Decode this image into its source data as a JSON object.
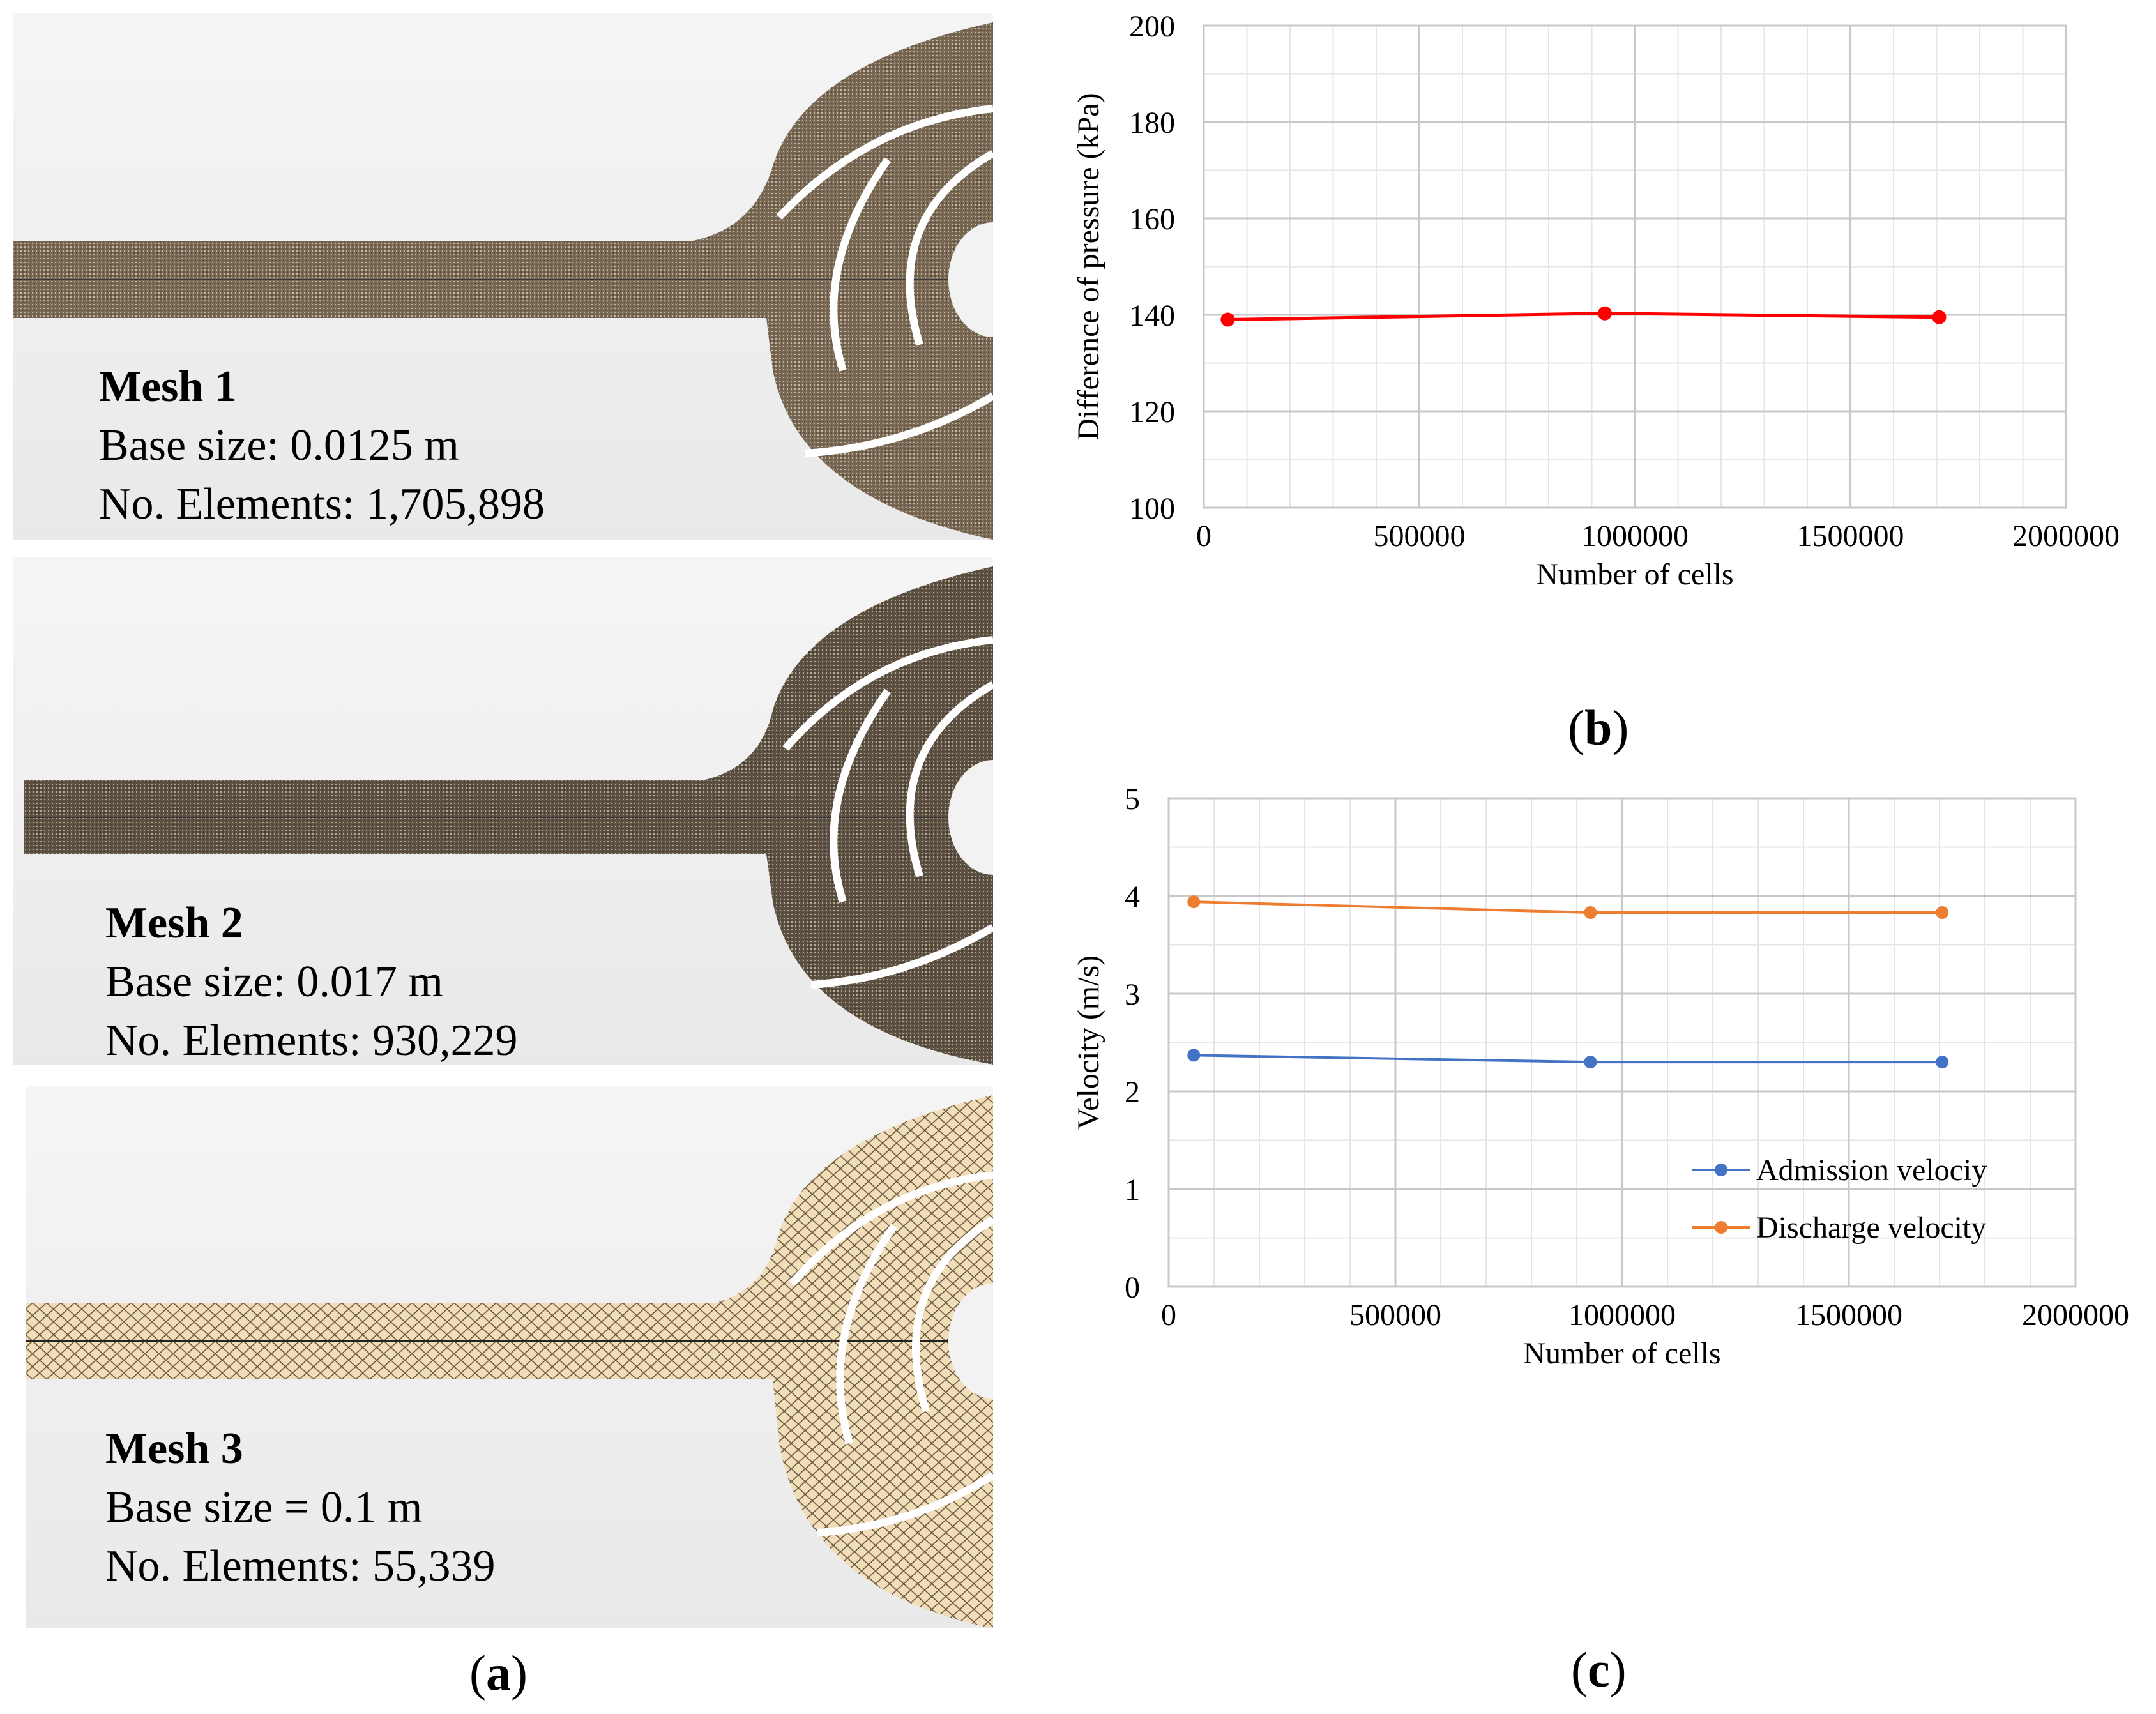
{
  "panel_labels": {
    "a": {
      "open": "(",
      "letter": "a",
      "close": ")"
    },
    "b": {
      "open": "(",
      "letter": "b",
      "close": ")"
    },
    "c": {
      "open": "(",
      "letter": "c",
      "close": ")"
    }
  },
  "meshes": [
    {
      "name": "Mesh 1",
      "base_size": "Base size: 0.0125 m",
      "elements": "No. Elements: 1,705,898",
      "fill": "#7a6a55"
    },
    {
      "name": "Mesh 2",
      "base_size": "Base size: 0.017 m",
      "elements": "No. Elements: 930,229",
      "fill": "#5e5244"
    },
    {
      "name": "Mesh 3",
      "base_size": "Base size = 0.1 m",
      "elements": "No. Elements: 55,339",
      "fill": "#f1ddb8"
    }
  ],
  "chart_data": [
    {
      "type": "line",
      "xlabel": "Number of cells",
      "ylabel": "Difference of pressure (kPa)",
      "xlim": [
        0,
        2000000
      ],
      "ylim": [
        100,
        200
      ],
      "xticks": [
        "0",
        "500000",
        "1000000",
        "1500000",
        "2000000"
      ],
      "yticks": [
        "100",
        "120",
        "140",
        "160",
        "180",
        "200"
      ],
      "grid": true,
      "series": [
        {
          "x": [
            55339,
            930229,
            1705898
          ],
          "y": [
            139,
            140.3,
            139.5
          ],
          "color": "#ff0000"
        }
      ]
    },
    {
      "type": "line",
      "xlabel": "Number  of cells",
      "ylabel": "Velocity (m/s)",
      "xlim": [
        0,
        2000000
      ],
      "ylim": [
        0,
        5
      ],
      "xticks": [
        "0",
        "500000",
        "1000000",
        "1500000",
        "2000000"
      ],
      "yticks": [
        "0",
        "1",
        "2",
        "3",
        "4",
        "5"
      ],
      "grid": true,
      "legend": "bottom-right",
      "series": [
        {
          "name": "Admission velociy",
          "x": [
            55339,
            930229,
            1705898
          ],
          "y": [
            2.37,
            2.3,
            2.3
          ],
          "color": "#4472c4"
        },
        {
          "name": "Discharge velocity",
          "x": [
            55339,
            930229,
            1705898
          ],
          "y": [
            3.94,
            3.83,
            3.83
          ],
          "color": "#ed7d31"
        }
      ]
    }
  ]
}
